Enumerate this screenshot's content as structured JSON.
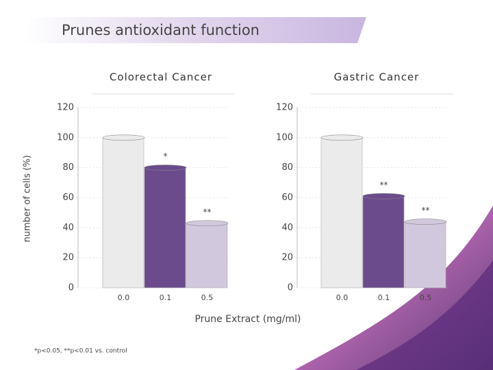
{
  "slide": {
    "title": "Prunes antioxidant function",
    "x_label": "Prune Extract (mg/ml)",
    "footnote": "*p<0.05, **p<0.01 vs. control"
  },
  "chart_data": [
    {
      "type": "bar",
      "title": "Colorectal Cancer",
      "y_label": "number of cells (%)",
      "categories": [
        "0.0",
        "0.1",
        "0.5"
      ],
      "values": [
        100,
        80,
        43
      ],
      "annotations": [
        null,
        "*",
        "**"
      ],
      "colors": [
        "#ebebeb",
        "#6b4b8c",
        "#d2c8de"
      ],
      "ylim": [
        0,
        120
      ],
      "yticks": [
        0,
        20,
        40,
        60,
        80,
        100,
        120
      ]
    },
    {
      "type": "bar",
      "title": "Gastric Cancer",
      "categories": [
        "0.0",
        "0.1",
        "0.5"
      ],
      "values": [
        100,
        61,
        44
      ],
      "annotations": [
        null,
        "**",
        "**"
      ],
      "colors": [
        "#ebebeb",
        "#6b4b8c",
        "#d2c8de"
      ],
      "ylim": [
        0,
        120
      ],
      "yticks": [
        0,
        20,
        40,
        60,
        80,
        100,
        120
      ]
    }
  ]
}
